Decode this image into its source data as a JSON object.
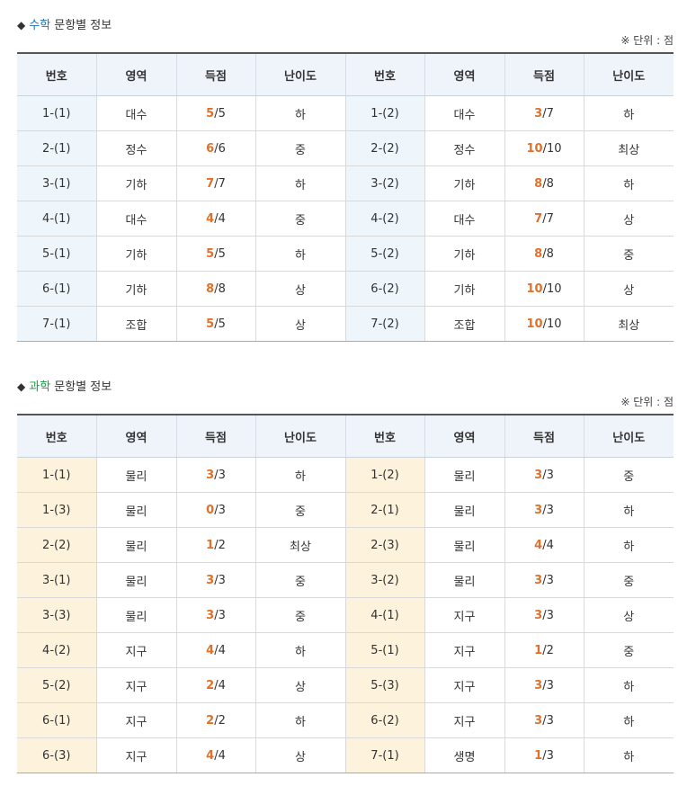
{
  "math": {
    "bullet": "◆",
    "subject": "수학",
    "title_rest": "문항별 정보",
    "unit": "※ 단위 : 점",
    "headers": [
      "번호",
      "영역",
      "득점",
      "난이도",
      "번호",
      "영역",
      "득점",
      "난이도"
    ],
    "rows": [
      [
        {
          "num": "1-(1)",
          "area": "대수",
          "got": "5",
          "total": "/5",
          "diff": "하"
        },
        {
          "num": "1-(2)",
          "area": "대수",
          "got": "3",
          "total": "/7",
          "diff": "하"
        }
      ],
      [
        {
          "num": "2-(1)",
          "area": "정수",
          "got": "6",
          "total": "/6",
          "diff": "중"
        },
        {
          "num": "2-(2)",
          "area": "정수",
          "got": "10",
          "total": "/10",
          "diff": "최상"
        }
      ],
      [
        {
          "num": "3-(1)",
          "area": "기하",
          "got": "7",
          "total": "/7",
          "diff": "하"
        },
        {
          "num": "3-(2)",
          "area": "기하",
          "got": "8",
          "total": "/8",
          "diff": "하"
        }
      ],
      [
        {
          "num": "4-(1)",
          "area": "대수",
          "got": "4",
          "total": "/4",
          "diff": "중"
        },
        {
          "num": "4-(2)",
          "area": "대수",
          "got": "7",
          "total": "/7",
          "diff": "상"
        }
      ],
      [
        {
          "num": "5-(1)",
          "area": "기하",
          "got": "5",
          "total": "/5",
          "diff": "하"
        },
        {
          "num": "5-(2)",
          "area": "기하",
          "got": "8",
          "total": "/8",
          "diff": "중"
        }
      ],
      [
        {
          "num": "6-(1)",
          "area": "기하",
          "got": "8",
          "total": "/8",
          "diff": "상"
        },
        {
          "num": "6-(2)",
          "area": "기하",
          "got": "10",
          "total": "/10",
          "diff": "상"
        }
      ],
      [
        {
          "num": "7-(1)",
          "area": "조합",
          "got": "5",
          "total": "/5",
          "diff": "상"
        },
        {
          "num": "7-(2)",
          "area": "조합",
          "got": "10",
          "total": "/10",
          "diff": "최상"
        }
      ]
    ]
  },
  "science": {
    "bullet": "◆",
    "subject": "과학",
    "title_rest": "문항별 정보",
    "unit": "※ 단위 : 점",
    "headers": [
      "번호",
      "영역",
      "득점",
      "난이도",
      "번호",
      "영역",
      "득점",
      "난이도"
    ],
    "rows": [
      [
        {
          "num": "1-(1)",
          "area": "물리",
          "got": "3",
          "total": "/3",
          "diff": "하"
        },
        {
          "num": "1-(2)",
          "area": "물리",
          "got": "3",
          "total": "/3",
          "diff": "중"
        }
      ],
      [
        {
          "num": "1-(3)",
          "area": "물리",
          "got": "0",
          "total": "/3",
          "diff": "중"
        },
        {
          "num": "2-(1)",
          "area": "물리",
          "got": "3",
          "total": "/3",
          "diff": "하"
        }
      ],
      [
        {
          "num": "2-(2)",
          "area": "물리",
          "got": "1",
          "total": "/2",
          "diff": "최상"
        },
        {
          "num": "2-(3)",
          "area": "물리",
          "got": "4",
          "total": "/4",
          "diff": "하"
        }
      ],
      [
        {
          "num": "3-(1)",
          "area": "물리",
          "got": "3",
          "total": "/3",
          "diff": "중"
        },
        {
          "num": "3-(2)",
          "area": "물리",
          "got": "3",
          "total": "/3",
          "diff": "중"
        }
      ],
      [
        {
          "num": "3-(3)",
          "area": "물리",
          "got": "3",
          "total": "/3",
          "diff": "중"
        },
        {
          "num": "4-(1)",
          "area": "지구",
          "got": "3",
          "total": "/3",
          "diff": "상"
        }
      ],
      [
        {
          "num": "4-(2)",
          "area": "지구",
          "got": "4",
          "total": "/4",
          "diff": "하"
        },
        {
          "num": "5-(1)",
          "area": "지구",
          "got": "1",
          "total": "/2",
          "diff": "중"
        }
      ],
      [
        {
          "num": "5-(2)",
          "area": "지구",
          "got": "2",
          "total": "/4",
          "diff": "상"
        },
        {
          "num": "5-(3)",
          "area": "지구",
          "got": "3",
          "total": "/3",
          "diff": "하"
        }
      ],
      [
        {
          "num": "6-(1)",
          "area": "지구",
          "got": "2",
          "total": "/2",
          "diff": "하"
        },
        {
          "num": "6-(2)",
          "area": "지구",
          "got": "3",
          "total": "/3",
          "diff": "하"
        }
      ],
      [
        {
          "num": "6-(3)",
          "area": "지구",
          "got": "4",
          "total": "/4",
          "diff": "상"
        },
        {
          "num": "7-(1)",
          "area": "생명",
          "got": "1",
          "total": "/3",
          "diff": "하"
        }
      ]
    ]
  },
  "colors": {
    "score_highlight": "#e0702a",
    "math_subject": "#1f6fb2",
    "science_subject": "#1a9a46",
    "math_num_bg": "#eef6fb",
    "science_num_bg": "#fdf2dc",
    "header_bg": "#eef4fa"
  }
}
